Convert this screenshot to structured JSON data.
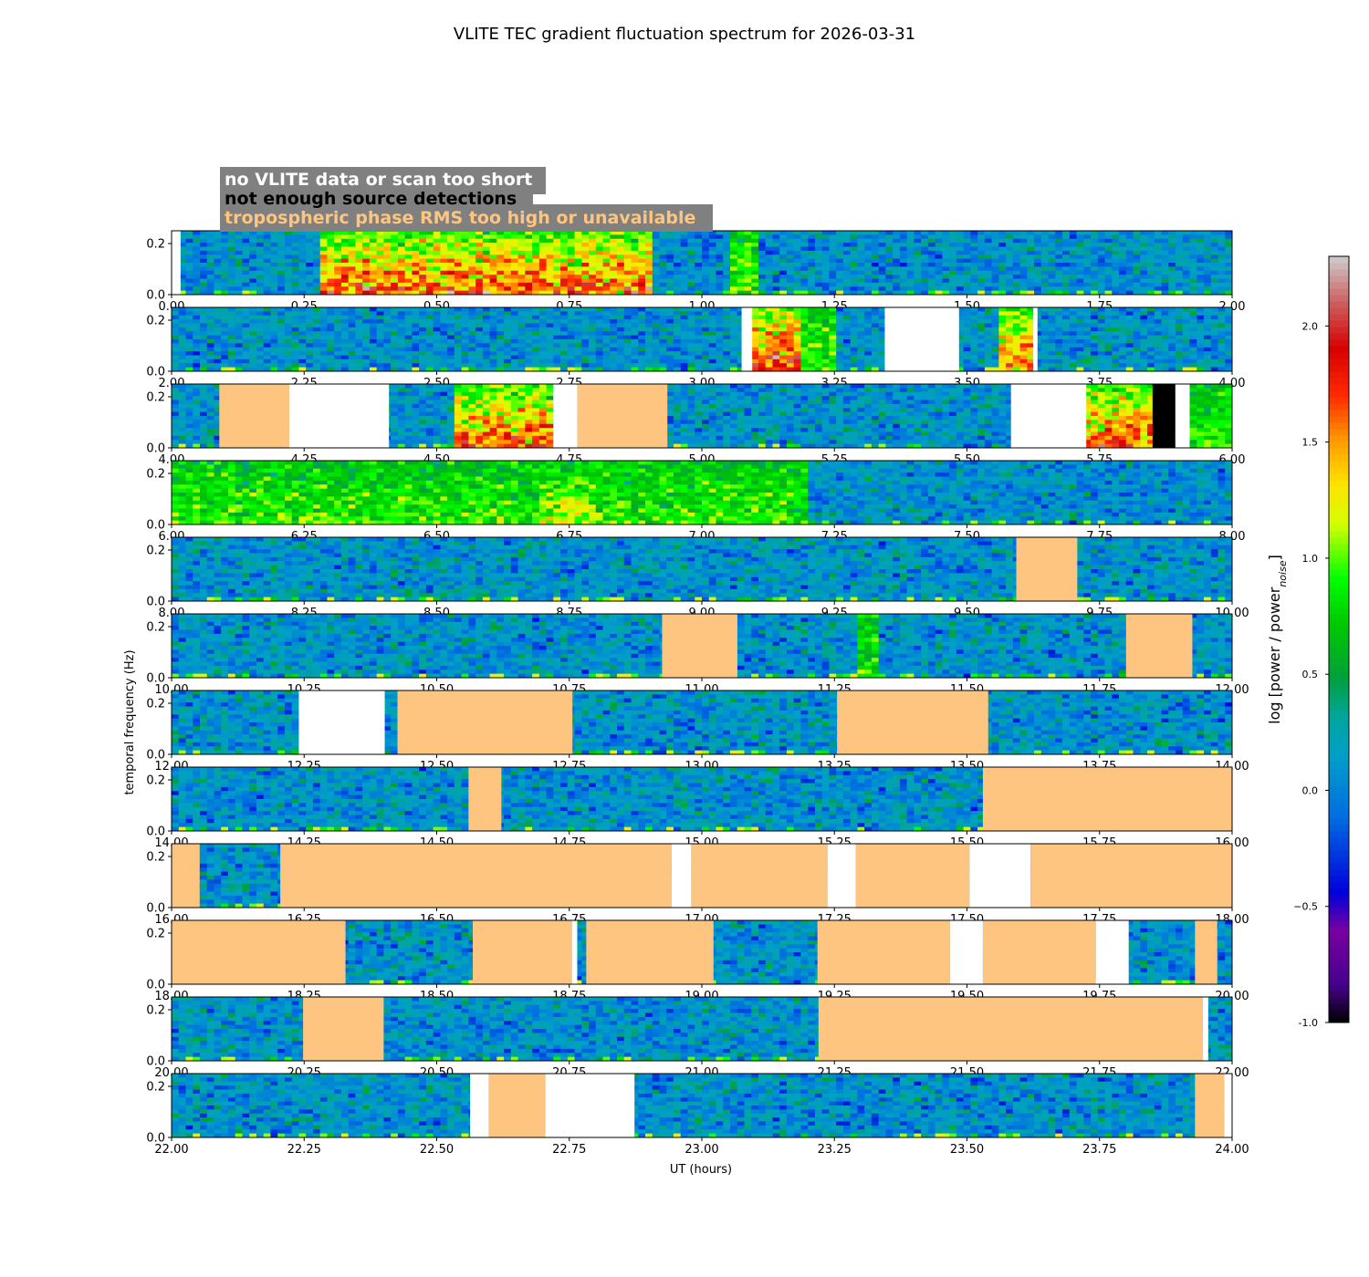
{
  "chart_data": {
    "type": "heatmap",
    "title": "VLITE TEC gradient fluctuation spectrum for 2026-03-31",
    "xlabel": "UT (hours)",
    "ylabel": "temporal frequency (Hz)",
    "ylim": [
      0,
      0.25
    ],
    "y_ticks": [
      "0.0",
      "0.2"
    ],
    "grid": false,
    "legend": {
      "placement": "top-left",
      "entries": [
        {
          "label": "no VLITE data or scan too short",
          "color": "#ffffff"
        },
        {
          "label": "not enough source detections",
          "color": "#000000"
        },
        {
          "label": "tropospheric phase RMS too high or unavailable",
          "color": "#fdc580"
        }
      ]
    },
    "colorbar": {
      "label": "log [power / power",
      "label_sub": "noise",
      "label_end": "]",
      "colormap": "nipy_spectral",
      "range": [
        -1.0,
        2.3
      ],
      "ticks": [
        "-1.0",
        "−0.5",
        "0.0",
        "0.5",
        "1.0",
        "1.5",
        "2.0"
      ],
      "tick_values": [
        -1.0,
        -0.5,
        0.0,
        0.5,
        1.0,
        1.5,
        2.0
      ]
    },
    "rows": [
      {
        "xlim": [
          0,
          2
        ],
        "tick_labels": [
          "0.00",
          "0.25",
          "0.50",
          "0.75",
          "1.00",
          "1.25",
          "1.50",
          "1.75",
          "2.00"
        ],
        "flags": [
          {
            "start": 0.0,
            "end": 0.017,
            "kind": "nodata"
          }
        ],
        "hotspots": [
          {
            "start": 0.28,
            "end": 0.9,
            "level": 1.9
          },
          {
            "start": 1.05,
            "end": 1.1,
            "level": 1.1
          }
        ]
      },
      {
        "xlim": [
          2,
          4
        ],
        "tick_labels": [
          "2.00",
          "2.25",
          "2.50",
          "2.75",
          "3.00",
          "3.25",
          "3.50",
          "3.75",
          "4.00"
        ],
        "flags": [
          {
            "start": 3.075,
            "end": 3.095,
            "kind": "nodata"
          },
          {
            "start": 3.345,
            "end": 3.485,
            "kind": "nodata"
          },
          {
            "start": 3.625,
            "end": 3.633,
            "kind": "nodata"
          }
        ],
        "hotspots": [
          {
            "start": 3.095,
            "end": 3.19,
            "level": 2.1
          },
          {
            "start": 3.19,
            "end": 3.255,
            "level": 1.1
          },
          {
            "start": 3.555,
            "end": 3.622,
            "level": 1.8
          }
        ]
      },
      {
        "xlim": [
          4,
          6
        ],
        "tick_labels": [
          "4.00",
          "4.25",
          "4.50",
          "4.75",
          "5.00",
          "5.25",
          "5.50",
          "5.75",
          "6.00"
        ],
        "flags": [
          {
            "start": 4.09,
            "end": 4.222,
            "kind": "tropo"
          },
          {
            "start": 4.222,
            "end": 4.41,
            "kind": "nodata"
          },
          {
            "start": 4.72,
            "end": 4.765,
            "kind": "nodata"
          },
          {
            "start": 4.765,
            "end": 4.935,
            "kind": "tropo"
          },
          {
            "start": 5.583,
            "end": 5.725,
            "kind": "nodata"
          },
          {
            "start": 5.85,
            "end": 5.893,
            "kind": "detect"
          },
          {
            "start": 5.893,
            "end": 5.92,
            "kind": "nodata"
          }
        ],
        "hotspots": [
          {
            "start": 4.54,
            "end": 4.72,
            "level": 1.9
          },
          {
            "start": 5.725,
            "end": 5.85,
            "level": 1.9
          },
          {
            "start": 5.92,
            "end": 6.0,
            "level": 1.0
          }
        ]
      },
      {
        "xlim": [
          6,
          8
        ],
        "tick_labels": [
          "6.00",
          "6.25",
          "6.50",
          "6.75",
          "7.00",
          "7.25",
          "7.50",
          "7.75",
          "8.00"
        ],
        "flags": [],
        "hotspots": [
          {
            "start": 6.0,
            "end": 7.2,
            "level": 1.0
          },
          {
            "start": 6.7,
            "end": 6.8,
            "level": 1.3
          }
        ]
      },
      {
        "xlim": [
          8,
          10
        ],
        "tick_labels": [
          "8.00",
          "8.25",
          "8.50",
          "8.75",
          "9.00",
          "9.25",
          "9.50",
          "9.75",
          "10.00"
        ],
        "flags": [
          {
            "start": 9.593,
            "end": 9.708,
            "kind": "tropo"
          }
        ],
        "hotspots": []
      },
      {
        "xlim": [
          10,
          12
        ],
        "tick_labels": [
          "10.00",
          "10.25",
          "10.50",
          "10.75",
          "11.00",
          "11.25",
          "11.50",
          "11.75",
          "12.00"
        ],
        "flags": [
          {
            "start": 10.925,
            "end": 11.067,
            "kind": "tropo"
          },
          {
            "start": 11.8,
            "end": 11.925,
            "kind": "tropo"
          }
        ],
        "hotspots": [
          {
            "start": 11.3,
            "end": 11.33,
            "level": 1.0
          }
        ]
      },
      {
        "xlim": [
          12,
          14
        ],
        "tick_labels": [
          "12.00",
          "12.25",
          "12.50",
          "12.75",
          "13.00",
          "13.25",
          "13.50",
          "13.75",
          "14.00"
        ],
        "flags": [
          {
            "start": 12.24,
            "end": 12.402,
            "kind": "nodata"
          },
          {
            "start": 12.426,
            "end": 12.756,
            "kind": "tropo"
          },
          {
            "start": 13.255,
            "end": 13.54,
            "kind": "tropo"
          }
        ],
        "hotspots": []
      },
      {
        "xlim": [
          14,
          16
        ],
        "tick_labels": [
          "14.00",
          "14.25",
          "14.50",
          "14.75",
          "15.00",
          "15.25",
          "15.50",
          "15.75",
          "16.00"
        ],
        "flags": [
          {
            "start": 14.56,
            "end": 14.622,
            "kind": "tropo"
          },
          {
            "start": 15.53,
            "end": 16.0,
            "kind": "tropo"
          }
        ],
        "hotspots": []
      },
      {
        "xlim": [
          16,
          18
        ],
        "tick_labels": [
          "16.00",
          "16.25",
          "16.50",
          "16.75",
          "17.00",
          "17.25",
          "17.50",
          "17.75",
          "18.00"
        ],
        "flags": [
          {
            "start": 16.0,
            "end": 16.053,
            "kind": "tropo"
          },
          {
            "start": 16.205,
            "end": 16.943,
            "kind": "tropo"
          },
          {
            "start": 16.943,
            "end": 16.98,
            "kind": "nodata"
          },
          {
            "start": 16.98,
            "end": 17.237,
            "kind": "tropo"
          },
          {
            "start": 17.237,
            "end": 17.29,
            "kind": "nodata"
          },
          {
            "start": 17.29,
            "end": 17.505,
            "kind": "tropo"
          },
          {
            "start": 17.505,
            "end": 17.62,
            "kind": "nodata"
          },
          {
            "start": 17.62,
            "end": 18.0,
            "kind": "tropo"
          }
        ],
        "hotspots": []
      },
      {
        "xlim": [
          18,
          20
        ],
        "tick_labels": [
          "18.00",
          "18.25",
          "18.50",
          "18.75",
          "19.00",
          "19.25",
          "19.50",
          "19.75",
          "20.00"
        ],
        "flags": [
          {
            "start": 18.0,
            "end": 18.328,
            "kind": "tropo"
          },
          {
            "start": 18.568,
            "end": 18.755,
            "kind": "tropo"
          },
          {
            "start": 18.755,
            "end": 18.765,
            "kind": "nodata"
          },
          {
            "start": 18.782,
            "end": 19.022,
            "kind": "tropo"
          },
          {
            "start": 19.218,
            "end": 19.468,
            "kind": "tropo"
          },
          {
            "start": 19.468,
            "end": 19.53,
            "kind": "nodata"
          },
          {
            "start": 19.53,
            "end": 19.743,
            "kind": "tropo"
          },
          {
            "start": 19.743,
            "end": 19.805,
            "kind": "nodata"
          },
          {
            "start": 19.93,
            "end": 19.972,
            "kind": "tropo"
          }
        ],
        "hotspots": []
      },
      {
        "xlim": [
          20,
          22
        ],
        "tick_labels": [
          "20.00",
          "20.25",
          "20.50",
          "20.75",
          "21.00",
          "21.25",
          "21.50",
          "21.75",
          "22.00"
        ],
        "flags": [
          {
            "start": 20.248,
            "end": 20.4,
            "kind": "tropo"
          },
          {
            "start": 21.22,
            "end": 21.945,
            "kind": "tropo"
          },
          {
            "start": 21.945,
            "end": 21.955,
            "kind": "nodata"
          }
        ],
        "hotspots": []
      },
      {
        "xlim": [
          22,
          24
        ],
        "tick_labels": [
          "22.00",
          "22.25",
          "22.50",
          "22.75",
          "23.00",
          "23.25",
          "23.50",
          "23.75",
          "24.00"
        ],
        "flags": [
          {
            "start": 22.563,
            "end": 22.598,
            "kind": "nodata"
          },
          {
            "start": 22.598,
            "end": 22.705,
            "kind": "tropo"
          },
          {
            "start": 22.705,
            "end": 22.873,
            "kind": "nodata"
          },
          {
            "start": 23.93,
            "end": 23.985,
            "kind": "tropo"
          },
          {
            "start": 23.985,
            "end": 24.0,
            "kind": "nodata"
          }
        ],
        "hotspots": []
      }
    ]
  },
  "colors": {
    "tropo": "#fdc580",
    "detect": "#000000",
    "nodata": "#ffffff",
    "legend_box": "#808080"
  }
}
